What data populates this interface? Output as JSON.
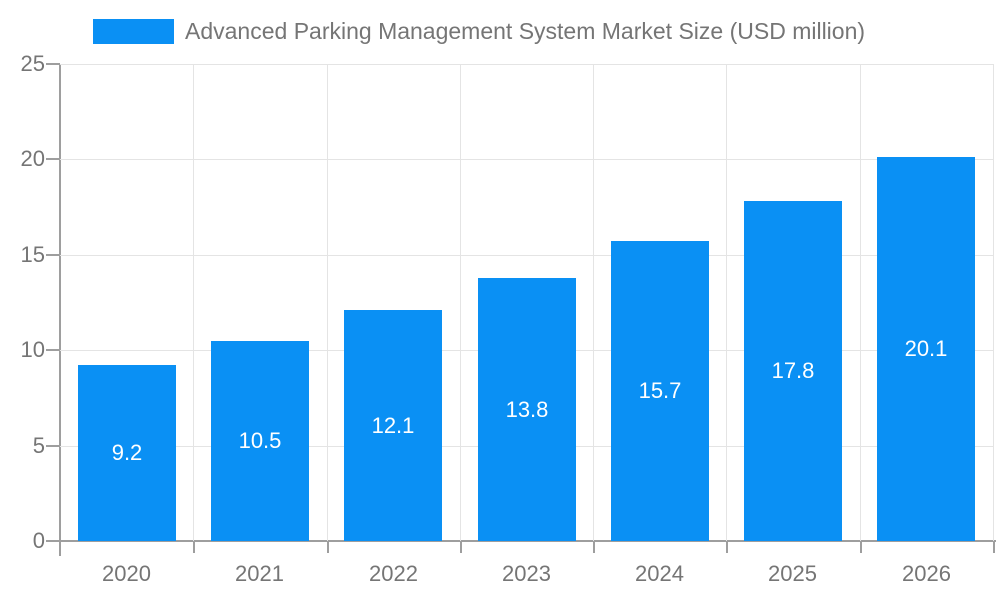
{
  "legend": {
    "label": "Advanced Parking Management System Market Size (USD million)"
  },
  "chart_data": {
    "type": "bar",
    "title": "Advanced Parking Management System Market Size (USD million)",
    "categories": [
      "2020",
      "2021",
      "2022",
      "2023",
      "2024",
      "2025",
      "2026"
    ],
    "values": [
      9.2,
      10.5,
      12.1,
      13.8,
      15.7,
      17.8,
      20.1
    ],
    "series": [
      {
        "name": "Advanced Parking Management System Market Size (USD million)",
        "values": [
          9.2,
          10.5,
          12.1,
          13.8,
          15.7,
          17.8,
          20.1
        ]
      }
    ],
    "xlabel": "",
    "ylabel": "",
    "ylim": [
      0,
      25
    ],
    "yticks": [
      0,
      5,
      10,
      15,
      20,
      25
    ],
    "grid": true,
    "legend_position": "top-left",
    "bar_color": "#0a90f4",
    "bar_label_color": "#ffffff",
    "axis_label_color": "#757575",
    "grid_color": "#e4e4e4",
    "axis_line_color": "#9e9e9e",
    "background_color": "#ffffff"
  }
}
